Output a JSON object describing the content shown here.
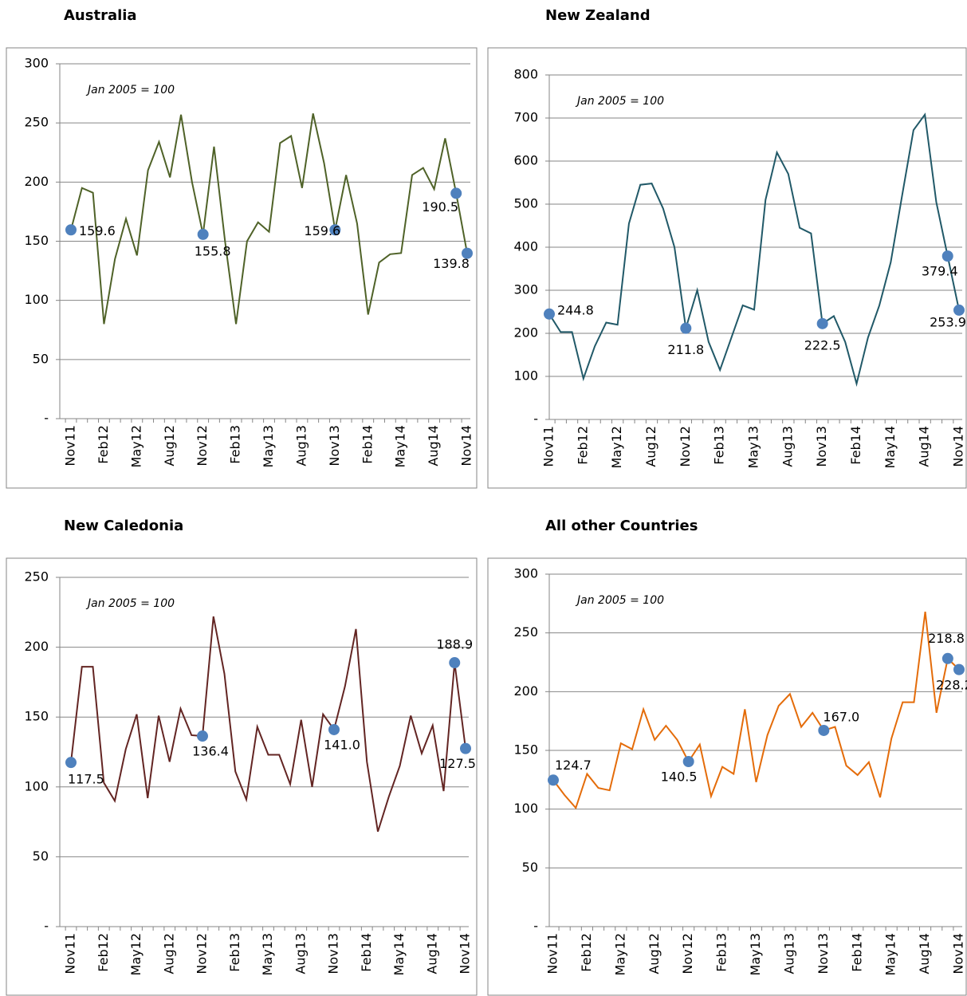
{
  "chart_data": [
    {
      "type": "line",
      "title": "Australia",
      "annotation": "Jan 2005 = 100",
      "categories": [
        "Nov11",
        null,
        null,
        "Feb12",
        null,
        null,
        "May12",
        null,
        null,
        "Aug12",
        null,
        null,
        "Nov12",
        null,
        null,
        "Feb13",
        null,
        null,
        "May13",
        null,
        null,
        "Aug13",
        null,
        null,
        "Nov13",
        null,
        null,
        "Feb14",
        null,
        null,
        "May14",
        null,
        null,
        "Aug14",
        null,
        null,
        "Nov14"
      ],
      "values": [
        159.6,
        195,
        191,
        80,
        135,
        169,
        138,
        210,
        234,
        204,
        257,
        200,
        155.8,
        230,
        150,
        80,
        150,
        166,
        158,
        233,
        239,
        195,
        258,
        216,
        159.6,
        206,
        165,
        88,
        132,
        139,
        140,
        206,
        212,
        194,
        237,
        190.5,
        139.8
      ],
      "value_labels": [
        "159.6",
        null,
        null,
        null,
        null,
        null,
        null,
        null,
        null,
        null,
        null,
        null,
        "155.8",
        null,
        null,
        null,
        null,
        null,
        null,
        null,
        null,
        null,
        null,
        null,
        "159.6",
        null,
        null,
        null,
        null,
        null,
        null,
        null,
        null,
        null,
        null,
        "190.5",
        "139.8"
      ],
      "color": "#4f6228",
      "marker_color": "#4f81bd",
      "ylim": [
        0,
        300
      ],
      "yticks": [
        {
          "value": 0,
          "label": "-"
        },
        50,
        100,
        150,
        200,
        250,
        300
      ],
      "grid": true
    },
    {
      "type": "line",
      "title": "New Zealand",
      "annotation": "Jan 2005 = 100",
      "categories": [
        "Nov11",
        null,
        null,
        "Feb12",
        null,
        null,
        "May12",
        null,
        null,
        "Aug12",
        null,
        null,
        "Nov12",
        null,
        null,
        "Feb13",
        null,
        null,
        "May13",
        null,
        null,
        "Aug13",
        null,
        null,
        "Nov13",
        null,
        null,
        "Feb14",
        null,
        null,
        "May14",
        null,
        null,
        "Aug14",
        null,
        null,
        "Nov14"
      ],
      "values": [
        244.8,
        203,
        203,
        95,
        170,
        225,
        220,
        455,
        545,
        548,
        490,
        400,
        211.8,
        300,
        180,
        115,
        190,
        265,
        255,
        510,
        620,
        570,
        445,
        432,
        222.5,
        240,
        180,
        83,
        190,
        265,
        365,
        520,
        672,
        708,
        505,
        379.4,
        253.9
      ],
      "value_labels": [
        "244.8",
        null,
        null,
        null,
        null,
        null,
        null,
        null,
        null,
        null,
        null,
        null,
        "211.8",
        null,
        null,
        null,
        null,
        null,
        null,
        null,
        null,
        null,
        null,
        null,
        "222.5",
        null,
        null,
        null,
        null,
        null,
        null,
        null,
        null,
        null,
        null,
        "379.4",
        "253.9"
      ],
      "color": "#215968",
      "marker_color": "#4f81bd",
      "ylim": [
        0,
        800
      ],
      "yticks": [
        {
          "value": 0,
          "label": "-"
        },
        100,
        200,
        300,
        400,
        500,
        600,
        700,
        800
      ],
      "grid": true
    },
    {
      "type": "line",
      "title": "New Caledonia",
      "annotation": "Jan 2005 = 100",
      "categories": [
        "Nov11",
        null,
        null,
        "Feb12",
        null,
        null,
        "May12",
        null,
        null,
        "Aug12",
        null,
        null,
        "Nov12",
        null,
        null,
        "Feb13",
        null,
        null,
        "May13",
        null,
        null,
        "Aug13",
        null,
        null,
        "Nov13",
        null,
        null,
        "Feb14",
        null,
        null,
        "May14",
        null,
        null,
        "Aug14",
        null,
        null,
        "Nov14"
      ],
      "values": [
        117.5,
        186,
        186,
        103,
        90,
        127,
        152,
        92,
        151,
        118,
        156,
        137,
        136.4,
        222,
        181,
        111,
        91,
        143,
        123,
        123,
        102,
        148,
        100,
        152,
        141,
        172,
        213,
        118,
        68,
        93,
        115,
        151,
        124,
        144,
        97,
        188.9,
        127.5
      ],
      "value_labels": [
        "117.5",
        null,
        null,
        null,
        null,
        null,
        null,
        null,
        null,
        null,
        null,
        null,
        "136.4",
        null,
        null,
        null,
        null,
        null,
        null,
        null,
        null,
        null,
        null,
        null,
        "141.0",
        null,
        null,
        null,
        null,
        null,
        null,
        null,
        null,
        null,
        null,
        "188.9",
        "127.5"
      ],
      "color": "#632523",
      "marker_color": "#4f81bd",
      "ylim": [
        0,
        250
      ],
      "yticks": [
        {
          "value": 0,
          "label": "-"
        },
        50,
        100,
        150,
        200,
        250
      ],
      "grid": true
    },
    {
      "type": "line",
      "title": "All other Countries",
      "annotation": "Jan 2005 = 100",
      "categories": [
        "Nov11",
        null,
        null,
        "Feb12",
        null,
        null,
        "May12",
        null,
        null,
        "Aug12",
        null,
        null,
        "Nov12",
        null,
        null,
        "Feb13",
        null,
        null,
        "May13",
        null,
        null,
        "Aug13",
        null,
        null,
        "Nov13",
        null,
        null,
        "Feb14",
        null,
        null,
        "May14",
        null,
        null,
        "Aug14",
        null,
        null,
        "Nov14"
      ],
      "values": [
        124.7,
        112,
        101,
        130,
        118,
        116,
        156,
        151,
        185,
        159,
        171,
        159,
        140.5,
        155,
        111,
        136,
        130,
        185,
        123,
        163,
        188,
        198,
        170,
        182,
        167,
        170,
        137,
        129,
        140,
        110,
        160,
        191,
        191,
        268,
        182,
        228.2,
        218.8
      ],
      "value_labels": [
        "124.7",
        null,
        null,
        null,
        null,
        null,
        null,
        null,
        null,
        null,
        null,
        null,
        "140.5",
        null,
        null,
        null,
        null,
        null,
        null,
        null,
        null,
        null,
        null,
        null,
        "167.0",
        null,
        null,
        null,
        null,
        null,
        null,
        null,
        null,
        null,
        null,
        "228.2",
        "218.8"
      ],
      "color": "#e46c0a",
      "marker_color": "#4f81bd",
      "ylim": [
        0,
        300
      ],
      "yticks": [
        {
          "value": 0,
          "label": "-"
        },
        50,
        100,
        150,
        200,
        250,
        300
      ],
      "grid": true
    }
  ]
}
